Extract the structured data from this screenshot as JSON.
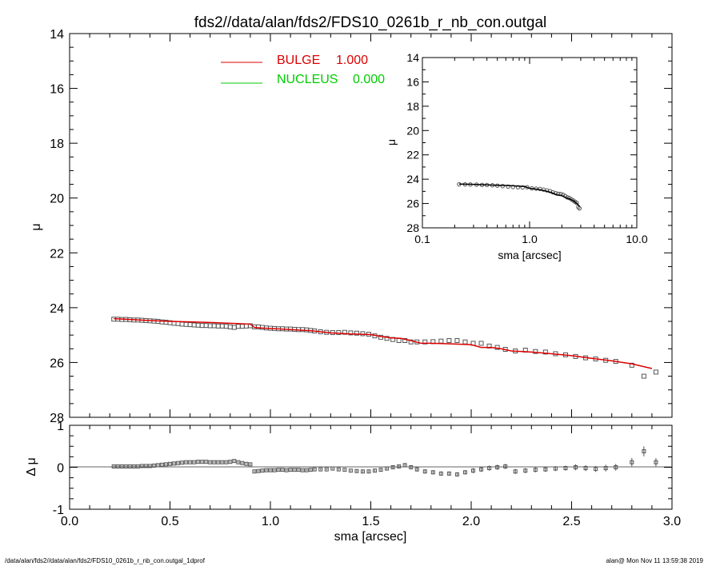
{
  "title": "fds2//data/alan/fds2/FDS10_0261b_r_nb_con.outgal",
  "footer_left": "/data/alan/fds2//data/alan/fds2/FDS10_0261b_r_nb_con.outgal_1dprof",
  "footer_right": "alan@  Mon Nov 11 13:59:38 2019",
  "colors": {
    "bulge": "#dd0000",
    "nucleus": "#00cc00",
    "points": "#555555",
    "axes": "#000000"
  },
  "chart_data": [
    {
      "id": "main",
      "type": "scatter",
      "xlabel": "",
      "ylabel": "μ",
      "xlim": [
        0.0,
        3.0
      ],
      "ylim": [
        28,
        14
      ],
      "y_inverted": true,
      "y_ticks": [
        "14",
        "16",
        "18",
        "20",
        "22",
        "24",
        "26",
        "28"
      ],
      "legend": [
        {
          "name": "BULGE",
          "value": "1.000",
          "color": "#dd0000"
        },
        {
          "name": "NUCLEUS",
          "value": "0.000",
          "color": "#00cc00"
        }
      ],
      "legend_position": "top-left",
      "series": [
        {
          "name": "data",
          "kind": "points",
          "x": [
            0.22,
            0.24,
            0.26,
            0.28,
            0.3,
            0.32,
            0.34,
            0.36,
            0.38,
            0.4,
            0.42,
            0.44,
            0.46,
            0.48,
            0.5,
            0.52,
            0.54,
            0.56,
            0.58,
            0.6,
            0.62,
            0.64,
            0.66,
            0.68,
            0.7,
            0.72,
            0.74,
            0.76,
            0.78,
            0.8,
            0.82,
            0.84,
            0.86,
            0.88,
            0.9,
            0.92,
            0.94,
            0.96,
            0.98,
            1.0,
            1.02,
            1.04,
            1.06,
            1.08,
            1.1,
            1.12,
            1.14,
            1.16,
            1.18,
            1.2,
            1.22,
            1.25,
            1.28,
            1.31,
            1.34,
            1.37,
            1.4,
            1.43,
            1.46,
            1.49,
            1.52,
            1.55,
            1.58,
            1.61,
            1.64,
            1.67,
            1.7,
            1.73,
            1.77,
            1.81,
            1.85,
            1.89,
            1.93,
            1.97,
            2.01,
            2.05,
            2.09,
            2.13,
            2.17,
            2.22,
            2.27,
            2.32,
            2.37,
            2.42,
            2.47,
            2.52,
            2.57,
            2.62,
            2.67,
            2.72,
            2.8,
            2.86,
            2.92
          ],
          "y": [
            24.42,
            24.42,
            24.43,
            24.43,
            24.44,
            24.45,
            24.45,
            24.46,
            24.47,
            24.48,
            24.49,
            24.5,
            24.52,
            24.53,
            24.55,
            24.57,
            24.58,
            24.6,
            24.61,
            24.62,
            24.63,
            24.64,
            24.65,
            24.65,
            24.66,
            24.66,
            24.67,
            24.67,
            24.68,
            24.7,
            24.72,
            24.68,
            24.68,
            24.67,
            24.66,
            24.7,
            24.7,
            24.72,
            24.74,
            24.75,
            24.76,
            24.77,
            24.77,
            24.78,
            24.78,
            24.79,
            24.8,
            24.8,
            24.81,
            24.83,
            24.85,
            24.88,
            24.9,
            24.91,
            24.91,
            24.9,
            24.92,
            24.93,
            24.95,
            24.97,
            25.03,
            25.08,
            25.12,
            25.16,
            25.2,
            25.2,
            25.25,
            25.25,
            25.25,
            25.24,
            25.22,
            25.2,
            25.2,
            25.25,
            25.3,
            25.3,
            25.4,
            25.45,
            25.52,
            25.58,
            25.55,
            25.6,
            25.62,
            25.68,
            25.72,
            25.78,
            25.83,
            25.87,
            25.92,
            25.96,
            26.1,
            26.5,
            26.35
          ]
        },
        {
          "name": "BULGE",
          "kind": "line",
          "x": [
            0.22,
            0.3,
            0.4,
            0.5,
            0.6,
            0.7,
            0.8,
            0.9,
            0.92,
            0.95,
            1.0,
            1.1,
            1.2,
            1.3,
            1.4,
            1.5,
            1.55,
            1.6,
            1.65,
            1.7,
            1.75,
            1.8,
            1.9,
            2.0,
            2.05,
            2.1,
            2.15,
            2.2,
            2.3,
            2.4,
            2.5,
            2.6,
            2.7,
            2.8,
            2.9
          ],
          "y": [
            24.4,
            24.43,
            24.47,
            24.5,
            24.52,
            24.54,
            24.57,
            24.6,
            24.72,
            24.74,
            24.76,
            24.8,
            24.84,
            24.92,
            24.96,
            24.98,
            25.05,
            25.1,
            25.12,
            25.2,
            25.3,
            25.3,
            25.32,
            25.35,
            25.45,
            25.45,
            25.5,
            25.58,
            25.62,
            25.68,
            25.75,
            25.85,
            25.94,
            26.05,
            26.22
          ]
        }
      ]
    },
    {
      "id": "residual",
      "type": "scatter",
      "xlabel": "sma [arcsec]",
      "ylabel": "Δ μ",
      "xlim": [
        0.0,
        3.0
      ],
      "ylim": [
        -1,
        1
      ],
      "x_ticks": [
        "0.0",
        "0.5",
        "1.0",
        "1.5",
        "2.0",
        "2.5",
        "3.0"
      ],
      "y_ticks": [
        "1",
        "0",
        "-1"
      ],
      "series": [
        {
          "name": "residuals",
          "kind": "points",
          "x": [
            0.22,
            0.24,
            0.26,
            0.28,
            0.3,
            0.32,
            0.34,
            0.36,
            0.38,
            0.4,
            0.42,
            0.44,
            0.46,
            0.48,
            0.5,
            0.52,
            0.54,
            0.56,
            0.58,
            0.6,
            0.62,
            0.64,
            0.66,
            0.68,
            0.7,
            0.72,
            0.74,
            0.76,
            0.78,
            0.8,
            0.82,
            0.84,
            0.86,
            0.88,
            0.9,
            0.92,
            0.94,
            0.96,
            0.98,
            1.0,
            1.02,
            1.04,
            1.06,
            1.08,
            1.1,
            1.12,
            1.14,
            1.16,
            1.18,
            1.2,
            1.22,
            1.25,
            1.28,
            1.31,
            1.34,
            1.37,
            1.4,
            1.43,
            1.46,
            1.49,
            1.52,
            1.55,
            1.58,
            1.61,
            1.64,
            1.67,
            1.7,
            1.73,
            1.77,
            1.81,
            1.85,
            1.89,
            1.93,
            1.97,
            2.01,
            2.05,
            2.09,
            2.13,
            2.17,
            2.22,
            2.27,
            2.32,
            2.37,
            2.42,
            2.47,
            2.52,
            2.57,
            2.62,
            2.67,
            2.72,
            2.8,
            2.86,
            2.92
          ],
          "y": [
            0.02,
            0.02,
            0.02,
            0.02,
            0.02,
            0.02,
            0.02,
            0.03,
            0.03,
            0.03,
            0.04,
            0.05,
            0.06,
            0.07,
            0.08,
            0.09,
            0.1,
            0.11,
            0.12,
            0.12,
            0.12,
            0.13,
            0.13,
            0.13,
            0.12,
            0.12,
            0.12,
            0.12,
            0.12,
            0.13,
            0.15,
            0.12,
            0.1,
            0.08,
            0.07,
            -0.1,
            -0.09,
            -0.08,
            -0.07,
            -0.07,
            -0.07,
            -0.06,
            -0.06,
            -0.07,
            -0.06,
            -0.06,
            -0.06,
            -0.07,
            -0.07,
            -0.06,
            -0.05,
            -0.05,
            -0.05,
            -0.03,
            -0.05,
            -0.06,
            -0.08,
            -0.09,
            -0.1,
            -0.1,
            -0.08,
            -0.06,
            -0.03,
            0.0,
            0.02,
            0.05,
            0.0,
            -0.05,
            -0.1,
            -0.12,
            -0.15,
            -0.15,
            -0.17,
            -0.12,
            -0.08,
            -0.05,
            -0.02,
            0.0,
            0.02,
            -0.1,
            -0.08,
            -0.06,
            -0.05,
            -0.03,
            -0.02,
            0.0,
            -0.02,
            -0.04,
            -0.02,
            0.0,
            0.12,
            0.38,
            0.12
          ],
          "err": [
            0.02,
            0.02,
            0.02,
            0.02,
            0.02,
            0.02,
            0.02,
            0.02,
            0.02,
            0.02,
            0.02,
            0.02,
            0.02,
            0.02,
            0.02,
            0.02,
            0.02,
            0.02,
            0.02,
            0.02,
            0.02,
            0.02,
            0.02,
            0.02,
            0.02,
            0.02,
            0.02,
            0.02,
            0.02,
            0.02,
            0.02,
            0.02,
            0.02,
            0.02,
            0.02,
            0.02,
            0.02,
            0.02,
            0.02,
            0.02,
            0.02,
            0.02,
            0.02,
            0.02,
            0.02,
            0.02,
            0.02,
            0.02,
            0.02,
            0.02,
            0.02,
            0.02,
            0.02,
            0.02,
            0.02,
            0.02,
            0.02,
            0.03,
            0.03,
            0.03,
            0.03,
            0.03,
            0.03,
            0.04,
            0.04,
            0.05,
            0.05,
            0.05,
            0.05,
            0.05,
            0.05,
            0.05,
            0.05,
            0.05,
            0.06,
            0.06,
            0.06,
            0.06,
            0.06,
            0.06,
            0.06,
            0.06,
            0.06,
            0.06,
            0.06,
            0.07,
            0.07,
            0.07,
            0.08,
            0.08,
            0.1,
            0.12,
            0.1
          ]
        }
      ]
    },
    {
      "id": "inset",
      "type": "scatter",
      "xlabel": "sma [arcsec]",
      "ylabel": "μ",
      "x_scale": "log",
      "xlim": [
        0.1,
        10.0
      ],
      "ylim": [
        28,
        14
      ],
      "y_inverted": true,
      "x_ticks": [
        "0.1",
        "1.0",
        "10.0"
      ],
      "y_ticks": [
        "14",
        "16",
        "18",
        "20",
        "22",
        "24",
        "26",
        "28"
      ],
      "series": [
        {
          "name": "data",
          "kind": "points",
          "x": [
            0.22,
            0.25,
            0.28,
            0.32,
            0.36,
            0.4,
            0.45,
            0.5,
            0.56,
            0.63,
            0.7,
            0.78,
            0.86,
            0.95,
            1.05,
            1.15,
            1.25,
            1.35,
            1.45,
            1.55,
            1.65,
            1.75,
            1.85,
            1.95,
            2.05,
            2.15,
            2.25,
            2.35,
            2.45,
            2.55,
            2.65,
            2.75,
            2.85,
            2.92
          ],
          "y": [
            24.42,
            24.43,
            24.44,
            24.45,
            24.47,
            24.48,
            24.5,
            24.53,
            24.57,
            24.61,
            24.64,
            24.66,
            24.68,
            24.66,
            24.75,
            24.78,
            24.8,
            24.86,
            24.92,
            24.98,
            25.08,
            25.15,
            25.2,
            25.22,
            25.28,
            25.38,
            25.5,
            25.55,
            25.65,
            25.75,
            25.85,
            25.95,
            26.3,
            26.4
          ]
        },
        {
          "name": "model",
          "kind": "line",
          "x": [
            0.22,
            0.3,
            0.4,
            0.5,
            0.6,
            0.7,
            0.8,
            0.9,
            1.0,
            1.2,
            1.4,
            1.6,
            1.8,
            2.0,
            2.2,
            2.4,
            2.6,
            2.8,
            2.92
          ],
          "y": [
            24.4,
            24.43,
            24.47,
            24.5,
            24.52,
            24.54,
            24.57,
            24.6,
            24.75,
            24.84,
            24.96,
            25.1,
            25.3,
            25.35,
            25.55,
            25.65,
            25.82,
            26.05,
            26.25
          ]
        }
      ]
    }
  ]
}
